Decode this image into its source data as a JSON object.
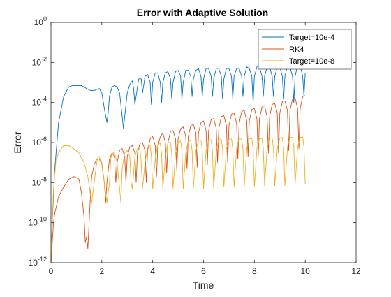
{
  "chart_data": {
    "type": "line",
    "title": "Error with Adaptive Solution",
    "xlabel": "Time",
    "ylabel": "Error",
    "xlim": [
      0,
      12
    ],
    "ylim": [
      1e-12,
      1
    ],
    "yscale": "log",
    "xticks": [
      0,
      2,
      4,
      6,
      8,
      10,
      12
    ],
    "xtick_labels": [
      "0",
      "2",
      "4",
      "6",
      "8",
      "10",
      "12"
    ],
    "yticks": [
      1e-12,
      1e-10,
      1e-08,
      1e-06,
      0.0001,
      0.01,
      1
    ],
    "ytick_labels": [
      {
        "base": "10",
        "exp": "-12"
      },
      {
        "base": "10",
        "exp": "-10"
      },
      {
        "base": "10",
        "exp": "-8"
      },
      {
        "base": "10",
        "exp": "-6"
      },
      {
        "base": "10",
        "exp": "-4"
      },
      {
        "base": "10",
        "exp": "-2"
      },
      {
        "base": "10",
        "exp": "0"
      }
    ],
    "grid": false,
    "legend_position": "top-right",
    "series": [
      {
        "name": "Target=10e-4",
        "color": "#0072BD",
        "x": [
          0.0,
          0.05,
          0.15,
          0.3,
          0.5,
          0.7,
          0.85,
          1.0,
          1.2,
          1.4,
          1.55,
          1.7,
          1.9,
          2.0,
          2.1,
          2.2,
          2.25,
          2.3,
          2.4,
          2.5,
          2.6,
          2.7,
          2.8,
          2.85,
          2.9,
          3.0,
          3.1,
          3.2,
          3.25,
          3.3,
          3.45,
          3.55,
          3.6,
          3.7,
          3.8,
          3.9,
          3.95,
          4.0,
          4.1,
          4.2,
          4.3,
          4.35,
          4.4,
          4.5,
          4.6,
          4.7,
          4.75,
          4.8,
          4.9,
          5.0,
          5.1,
          5.15,
          5.2,
          5.3,
          5.4,
          5.5,
          5.55,
          5.6,
          5.7,
          5.8,
          5.9,
          5.95,
          6.0,
          6.1,
          6.2,
          6.3,
          6.35,
          6.4,
          6.5,
          6.6,
          6.7,
          6.75,
          6.8,
          6.9,
          7.0,
          7.1,
          7.15,
          7.2,
          7.3,
          7.4,
          7.5,
          7.55,
          7.6,
          7.7,
          7.8,
          7.9,
          7.95,
          8.0,
          8.1,
          8.2,
          8.3,
          8.35,
          8.4,
          8.5,
          8.6,
          8.7,
          8.75,
          8.8,
          8.9,
          9.0,
          9.1,
          9.15,
          9.2,
          9.3,
          9.4,
          9.5,
          9.55,
          9.6,
          9.7,
          9.8,
          9.9,
          9.95,
          10.0
        ],
        "y": [
          1e-12,
          1e-10,
          5e-08,
          1e-05,
          0.0002,
          0.0006,
          0.0007,
          0.0007,
          0.0007,
          0.0005,
          0.0004,
          0.0004,
          0.0005,
          0.0003,
          5e-05,
          1e-05,
          3e-05,
          0.0002,
          0.0006,
          0.0007,
          0.0006,
          0.0003,
          2e-05,
          5e-06,
          2e-05,
          0.0003,
          0.0008,
          0.0012,
          0.0005,
          8e-05,
          0.0015,
          0.0015,
          0.0003,
          0.002,
          0.0025,
          0.001,
          8e-05,
          0.001,
          0.003,
          0.003,
          0.001,
          0.0001,
          0.001,
          0.003,
          0.0035,
          0.0015,
          0.00015,
          0.001,
          0.0035,
          0.004,
          0.002,
          0.00015,
          0.001,
          0.004,
          0.004,
          0.002,
          0.0002,
          0.0015,
          0.004,
          0.005,
          0.002,
          0.0002,
          0.0015,
          0.005,
          0.005,
          0.002,
          0.0002,
          0.0015,
          0.005,
          0.005,
          0.002,
          0.00015,
          0.0015,
          0.005,
          0.005,
          0.002,
          0.00015,
          0.002,
          0.005,
          0.005,
          0.002,
          0.0002,
          0.002,
          0.006,
          0.005,
          0.002,
          0.0001,
          0.002,
          0.006,
          0.006,
          0.002,
          0.0002,
          0.002,
          0.006,
          0.006,
          0.002,
          0.0002,
          0.002,
          0.006,
          0.006,
          0.002,
          0.00015,
          0.002,
          0.007,
          0.006,
          0.002,
          0.0001,
          0.002,
          0.007,
          0.007,
          0.002,
          0.0002,
          0.003
        ]
      },
      {
        "name": "RK4",
        "color": "#D95319",
        "x": [
          0.0,
          0.05,
          0.1,
          0.15,
          0.3,
          0.5,
          0.7,
          0.9,
          1.1,
          1.2,
          1.3,
          1.35,
          1.4,
          1.45,
          1.5,
          1.55,
          1.6,
          1.7,
          1.8,
          1.9,
          2.0,
          2.1,
          2.15,
          2.2,
          2.3,
          2.4,
          2.5,
          2.55,
          2.6,
          2.7,
          2.8,
          2.9,
          2.95,
          3.0,
          3.1,
          3.2,
          3.3,
          3.35,
          3.4,
          3.5,
          3.6,
          3.7,
          3.75,
          3.8,
          3.9,
          4.0,
          4.1,
          4.15,
          4.2,
          4.3,
          4.4,
          4.5,
          4.55,
          4.6,
          4.7,
          4.8,
          4.9,
          4.95,
          5.0,
          5.1,
          5.2,
          5.3,
          5.35,
          5.4,
          5.5,
          5.6,
          5.7,
          5.75,
          5.8,
          5.9,
          6.0,
          6.1,
          6.15,
          6.2,
          6.3,
          6.4,
          6.5,
          6.55,
          6.6,
          6.7,
          6.8,
          6.9,
          6.95,
          7.0,
          7.1,
          7.2,
          7.3,
          7.35,
          7.4,
          7.5,
          7.6,
          7.7,
          7.75,
          7.8,
          7.9,
          8.0,
          8.1,
          8.15,
          8.2,
          8.3,
          8.4,
          8.5,
          8.55,
          8.6,
          8.7,
          8.8,
          8.9,
          8.95,
          9.0,
          9.1,
          9.2,
          9.3,
          9.35,
          9.4,
          9.5,
          9.6,
          9.7,
          9.75,
          9.8,
          9.9,
          10.0
        ],
        "y": [
          1e-12,
          1e-11,
          1e-10,
          3e-10,
          2e-09,
          6e-09,
          1.5e-08,
          2e-08,
          1.5e-08,
          3e-09,
          2e-10,
          1e-11,
          2e-11,
          5e-12,
          1e-10,
          2e-09,
          2e-08,
          8e-08,
          1.5e-07,
          1.5e-07,
          8e-08,
          1e-08,
          1e-09,
          1e-08,
          1.5e-07,
          3e-07,
          2e-07,
          1e-08,
          1e-07,
          4e-07,
          5e-07,
          2e-07,
          1e-08,
          2e-07,
          6e-07,
          7e-07,
          3e-07,
          1e-08,
          3e-07,
          9e-07,
          1e-06,
          4e-07,
          1e-08,
          4e-07,
          1.5e-06,
          2e-06,
          7e-07,
          2e-08,
          6e-07,
          2e-06,
          3e-06,
          1e-06,
          3e-08,
          1e-06,
          3.5e-06,
          4e-06,
          1.5e-06,
          4e-08,
          1.5e-06,
          5e-06,
          6e-06,
          2e-06,
          5e-08,
          2e-06,
          7e-06,
          8e-06,
          3e-06,
          6e-08,
          3e-06,
          1e-05,
          1.2e-05,
          4e-06,
          8e-08,
          4e-06,
          1.4e-05,
          1.6e-05,
          5e-06,
          1e-07,
          5e-06,
          2e-05,
          2.2e-05,
          7e-06,
          1e-07,
          7e-06,
          2.6e-05,
          3e-05,
          9e-06,
          1.5e-07,
          9e-06,
          3.5e-05,
          4e-05,
          1.2e-05,
          2e-07,
          1.2e-05,
          4.5e-05,
          5e-05,
          1.5e-05,
          2e-07,
          1.5e-05,
          6e-05,
          7e-05,
          2e-05,
          3e-07,
          2e-05,
          8e-05,
          9e-05,
          3e-05,
          3e-07,
          3e-05,
          0.00011,
          0.00012,
          4e-05,
          4e-07,
          4e-05,
          0.00015,
          0.00017,
          5e-05,
          5e-07,
          5e-05,
          0.0002,
          0.00022
        ]
      },
      {
        "name": "Target=10e-8",
        "color": "#EDB120",
        "x": [
          0.0,
          0.05,
          0.1,
          0.2,
          0.35,
          0.5,
          0.7,
          0.9,
          1.1,
          1.3,
          1.45,
          1.6,
          1.7,
          1.8,
          1.85,
          1.9,
          2.0,
          2.1,
          2.2,
          2.3,
          2.35,
          2.4,
          2.5,
          2.6,
          2.7,
          2.75,
          2.8,
          2.9,
          3.0,
          3.1,
          3.15,
          3.2,
          3.3,
          3.4,
          3.5,
          3.55,
          3.6,
          3.7,
          3.8,
          3.9,
          3.95,
          4.0,
          4.1,
          4.2,
          4.3,
          4.35,
          4.4,
          4.5,
          4.6,
          4.7,
          4.75,
          4.8,
          4.9,
          5.0,
          5.1,
          5.15,
          5.2,
          5.3,
          5.4,
          5.5,
          5.55,
          5.6,
          5.7,
          5.8,
          5.9,
          5.95,
          6.0,
          6.1,
          6.2,
          6.3,
          6.35,
          6.4,
          6.5,
          6.6,
          6.7,
          6.75,
          6.8,
          6.9,
          7.0,
          7.1,
          7.15,
          7.2,
          7.3,
          7.4,
          7.5,
          7.55,
          7.6,
          7.7,
          7.8,
          7.9,
          7.95,
          8.0,
          8.1,
          8.2,
          8.3,
          8.35,
          8.4,
          8.5,
          8.6,
          8.7,
          8.75,
          8.8,
          8.9,
          9.0,
          9.1,
          9.15,
          9.2,
          9.3,
          9.4,
          9.5,
          9.55,
          9.6,
          9.7,
          9.8,
          9.9,
          9.95,
          10.0
        ],
        "y": [
          1e-12,
          1e-10,
          5e-09,
          1.5e-07,
          4e-07,
          7e-07,
          7e-07,
          5e-07,
          3e-07,
          1e-07,
          2e-08,
          1e-09,
          1e-08,
          1e-07,
          2e-07,
          2e-07,
          1e-07,
          1e-08,
          1e-09,
          1e-08,
          1.5e-07,
          3e-07,
          3e-07,
          1e-07,
          5e-09,
          1e-09,
          5e-08,
          3e-07,
          4e-07,
          2e-07,
          1e-08,
          5e-09,
          2e-07,
          5e-07,
          5e-07,
          1e-07,
          5e-09,
          1e-07,
          6e-07,
          7e-07,
          2e-07,
          5e-09,
          1.5e-07,
          8e-07,
          9e-07,
          3e-07,
          5e-09,
          2e-07,
          1e-06,
          1e-06,
          3e-07,
          5e-09,
          3e-07,
          1e-06,
          1.2e-06,
          4e-07,
          5e-09,
          3e-07,
          1.2e-06,
          1.2e-06,
          4e-07,
          5e-09,
          4e-07,
          1.3e-06,
          1.3e-06,
          4e-07,
          5e-09,
          4e-07,
          1.3e-06,
          1.4e-06,
          4e-07,
          5e-09,
          4e-07,
          1.4e-06,
          1.4e-06,
          5e-07,
          6e-09,
          5e-07,
          1.5e-06,
          1.5e-06,
          5e-07,
          6e-09,
          5e-07,
          1.5e-06,
          1.5e-06,
          5e-07,
          6e-09,
          5e-07,
          1.6e-06,
          1.6e-06,
          5e-07,
          6e-09,
          5e-07,
          1.6e-06,
          1.6e-06,
          5e-07,
          7e-09,
          5e-07,
          1.7e-06,
          1.7e-06,
          5e-07,
          7e-09,
          5e-07,
          1.7e-06,
          1.8e-06,
          5e-07,
          7e-09,
          6e-07,
          1.8e-06,
          1.8e-06,
          6e-07,
          8e-09,
          6e-07,
          1.8e-06,
          1.9e-06,
          6e-07,
          8e-09
        ]
      }
    ]
  }
}
